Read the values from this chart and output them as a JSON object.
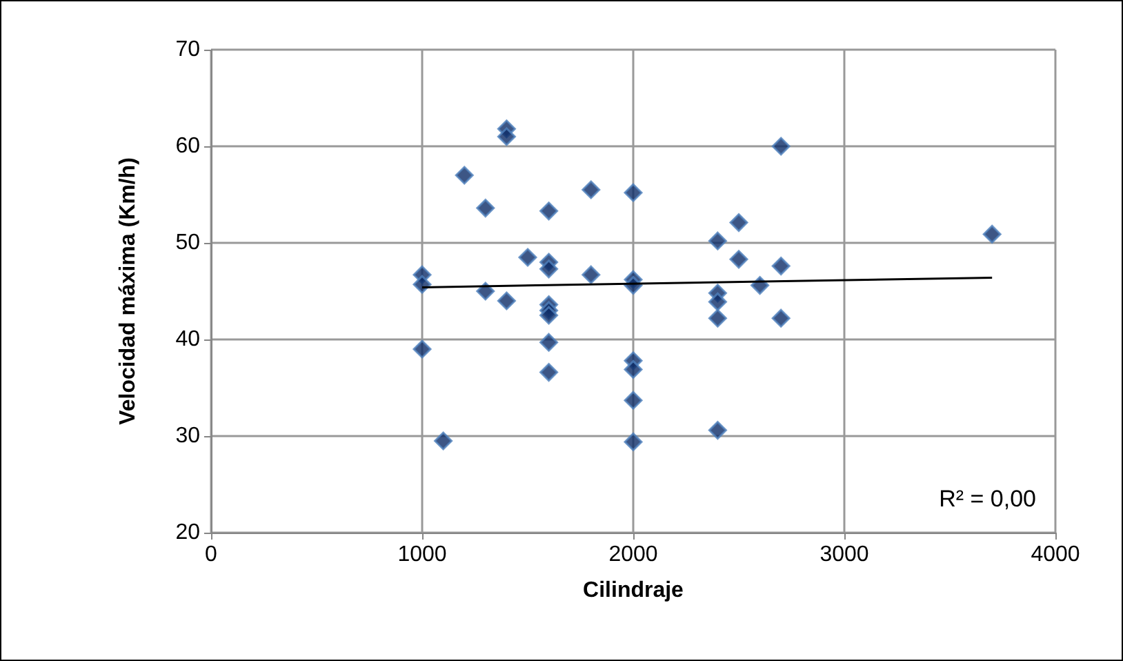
{
  "chart_data": {
    "type": "scatter",
    "xlabel": "Cilindraje",
    "ylabel": "Velocidad máxima (Km/h)",
    "xlim": [
      0,
      4000
    ],
    "xticks": [
      0,
      1000,
      2000,
      3000,
      4000
    ],
    "ylim": [
      20,
      70
    ],
    "yticks": [
      20,
      30,
      40,
      50,
      60,
      70
    ],
    "grid": true,
    "marker": "diamond",
    "series": [
      {
        "color": "#0d2c66",
        "x": [
          1000,
          1000,
          1000,
          1100,
          1200,
          1300,
          1300,
          1400,
          1400,
          1400,
          1500,
          1600,
          1600,
          1600,
          1600,
          1600,
          1600,
          1600,
          1600,
          1800,
          1800,
          2000,
          2000,
          2000,
          2000,
          2000,
          2000,
          2000,
          2400,
          2400,
          2400,
          2400,
          2400,
          2500,
          2500,
          2600,
          2700,
          2700,
          2700,
          3700
        ],
        "values": [
          46.7,
          45.7,
          39.0,
          29.5,
          57.0,
          53.6,
          45.0,
          61.8,
          61.0,
          44.0,
          48.5,
          53.3,
          48.0,
          47.3,
          43.6,
          43.0,
          42.5,
          39.7,
          36.6,
          55.5,
          46.7,
          55.2,
          46.2,
          45.6,
          37.8,
          36.9,
          33.7,
          29.4,
          50.2,
          44.8,
          43.9,
          42.2,
          30.6,
          52.1,
          48.3,
          45.6,
          60.0,
          47.6,
          42.2,
          50.9
        ]
      },
      {
        "type": "line",
        "color": "#000000",
        "x": [
          1000,
          3700
        ],
        "values": [
          45.4,
          46.4
        ],
        "marker": "none"
      }
    ],
    "annotations": [
      "R² = 0,00"
    ]
  }
}
